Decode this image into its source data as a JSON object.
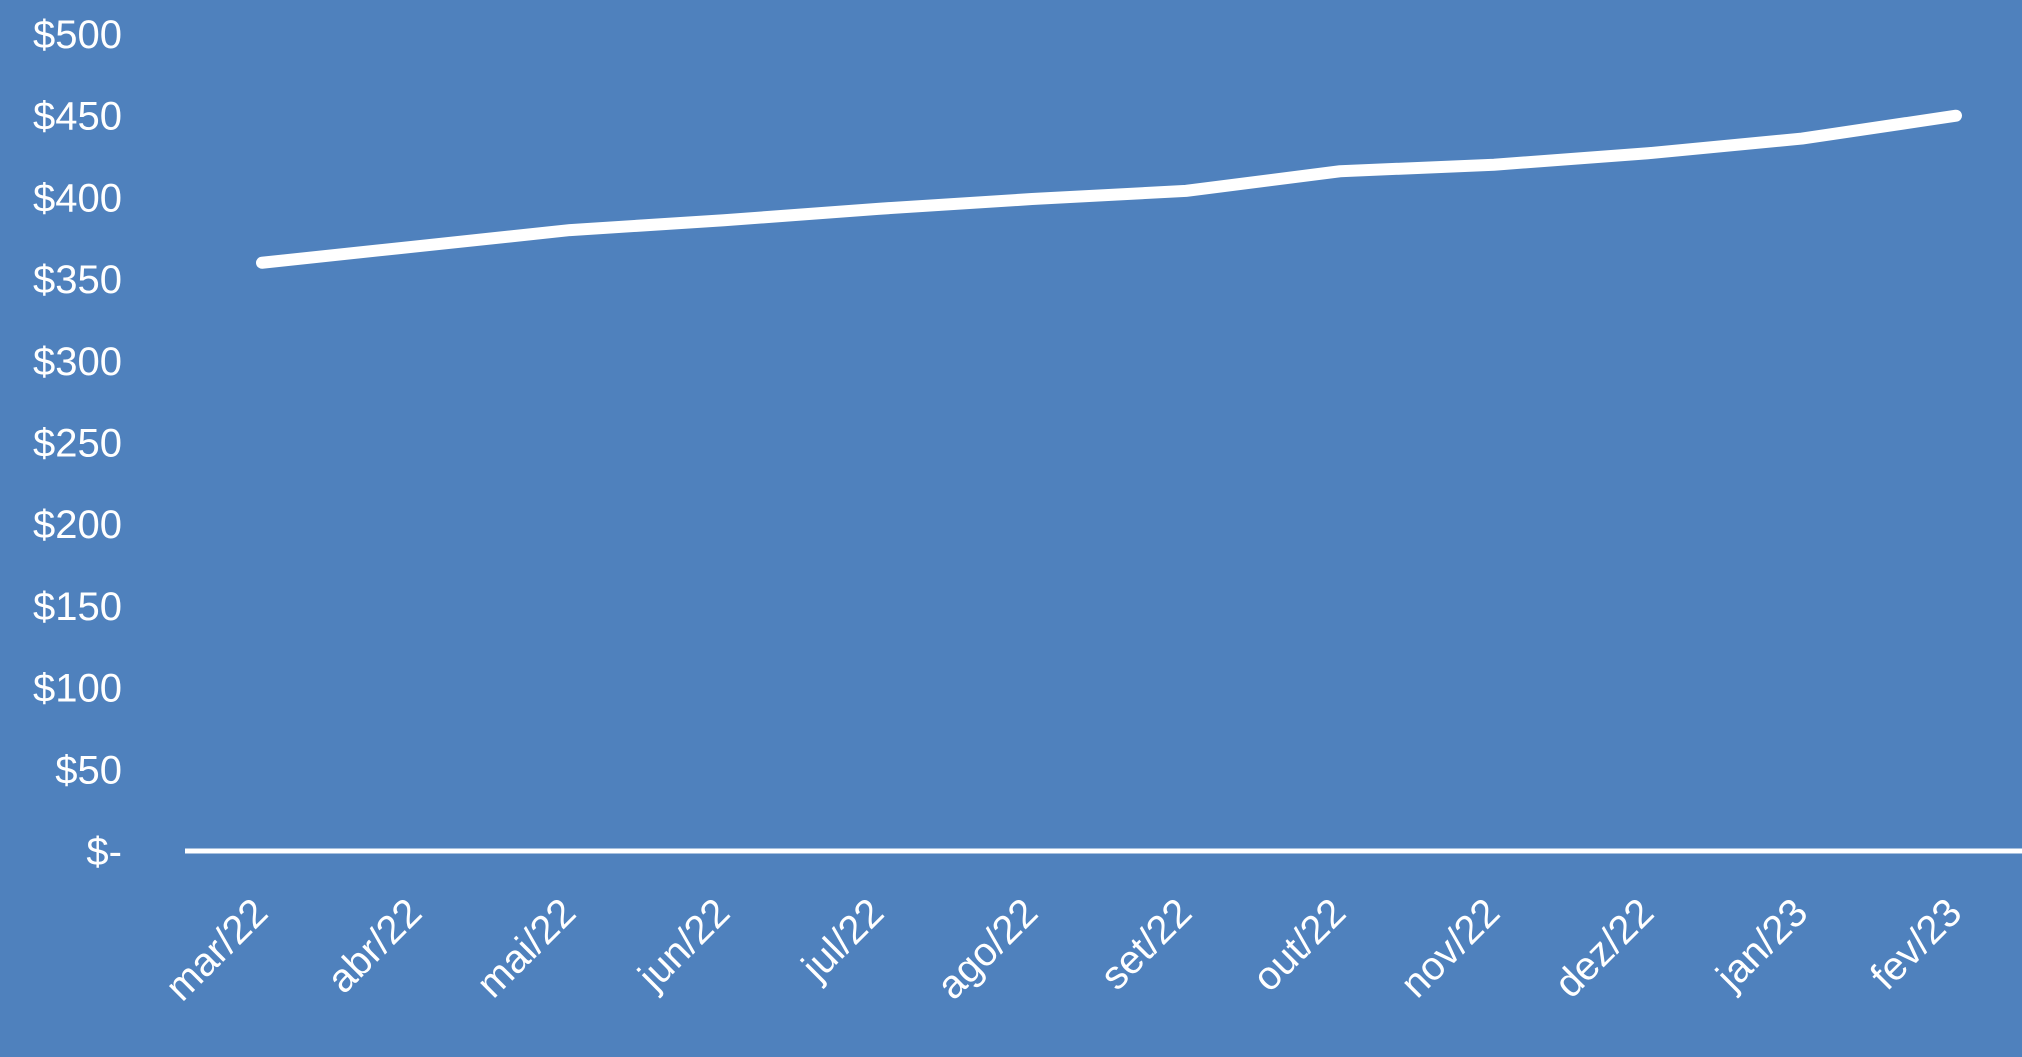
{
  "chart_data": {
    "type": "line",
    "categories": [
      "mar/22",
      "abr/22",
      "mai/22",
      "jun/22",
      "jul/22",
      "ago/22",
      "set/22",
      "out/22",
      "nov/22",
      "dez/22",
      "jan/23",
      "fev/23"
    ],
    "series": [
      {
        "values": [
          360,
          370,
          380,
          386,
          393,
          399,
          404,
          416,
          420,
          427,
          436,
          450
        ]
      }
    ],
    "y_tick_labels": [
      "$-",
      "$50",
      "$100",
      "$150",
      "$200",
      "$250",
      "$300",
      "$350",
      "$400",
      "$450",
      "$500"
    ],
    "ylim": [
      0,
      500
    ],
    "y_step": 50,
    "grid": false,
    "drop_lines": true,
    "colors": {
      "background": "#4f81bd",
      "line": "#ffffff",
      "text": "#ffffff"
    }
  }
}
